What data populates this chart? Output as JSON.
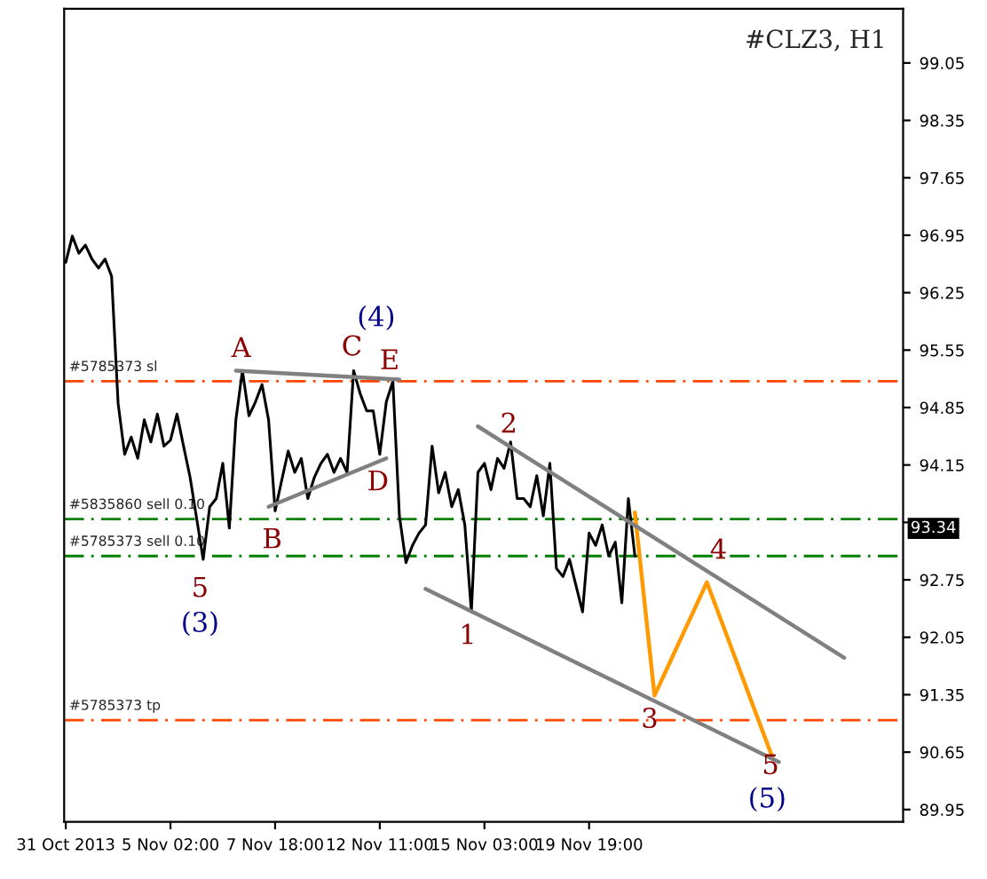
{
  "chart_data": {
    "type": "line",
    "title": "#CLZ3, H1",
    "categories": [
      "31 Oct 2013",
      null,
      null,
      null,
      null,
      null,
      null,
      null,
      null,
      null,
      null,
      null,
      null,
      null,
      null,
      null,
      "5 Nov 02:00",
      null,
      null,
      null,
      null,
      null,
      null,
      null,
      null,
      null,
      null,
      null,
      null,
      null,
      null,
      null,
      "7 Nov 18:00",
      null,
      null,
      null,
      null,
      null,
      null,
      null,
      null,
      null,
      null,
      null,
      null,
      null,
      null,
      null,
      "12 Nov 11:00",
      null,
      null,
      null,
      null,
      null,
      null,
      null,
      null,
      null,
      null,
      null,
      null,
      null,
      null,
      null,
      "15 Nov 03:00",
      null,
      null,
      null,
      null,
      null,
      null,
      null,
      null,
      null,
      null,
      null,
      null,
      null,
      null,
      null,
      "19 Nov 19:00",
      null,
      null,
      null,
      null,
      null,
      null,
      null,
      null,
      null,
      null,
      null,
      null,
      null,
      null,
      null,
      null,
      null,
      null,
      null,
      null,
      null,
      null,
      null,
      null,
      null,
      null,
      null,
      null,
      null,
      null,
      null,
      null,
      null,
      null,
      null,
      null,
      null,
      null,
      null,
      null,
      null,
      null,
      null,
      null,
      null,
      null,
      null
    ],
    "ylim": [
      89.8,
      99.71
    ],
    "yticks": [
      89.95,
      90.65,
      91.35,
      92.05,
      92.75,
      {
        "value": 93.45,
        "label": null
      },
      94.15,
      94.85,
      95.55,
      96.25,
      96.95,
      97.65,
      98.35,
      99.05
    ],
    "series": [
      {
        "color": "#000000",
        "values": [
          96.62,
          96.94,
          96.73,
          96.83,
          96.66,
          96.55,
          96.66,
          96.45,
          94.9,
          94.28,
          94.49,
          94.23,
          94.7,
          94.43,
          94.77,
          94.38,
          94.45,
          94.77,
          94.38,
          94.0,
          93.5,
          93.0,
          93.64,
          93.74,
          94.17,
          93.38,
          94.7,
          95.3,
          94.75,
          94.92,
          95.13,
          94.7,
          93.59,
          93.96,
          94.32,
          94.06,
          94.23,
          93.74,
          94.0,
          94.17,
          94.28,
          94.06,
          94.23,
          94.06,
          95.3,
          95.02,
          94.81,
          94.81,
          94.28,
          94.92,
          95.17,
          93.53,
          92.96,
          93.17,
          93.32,
          93.42,
          94.38,
          93.81,
          94.06,
          93.64,
          93.85,
          93.42,
          92.36,
          94.06,
          94.17,
          93.85,
          94.23,
          94.11,
          94.43,
          93.74,
          93.74,
          93.64,
          94.02,
          93.53,
          94.17,
          92.89,
          92.79,
          93.0,
          92.68,
          92.36,
          93.32,
          93.17,
          93.42,
          93.04,
          93.21,
          92.47,
          93.74,
          93.04,
          null,
          null,
          null,
          null,
          null,
          null,
          null,
          null,
          null,
          null,
          null,
          null,
          null,
          null,
          null,
          null,
          null,
          null,
          null,
          null,
          null,
          null,
          null,
          null,
          null,
          null,
          null,
          null,
          null,
          null,
          null,
          null,
          null,
          null,
          null,
          null,
          null,
          null,
          null,
          null
        ]
      },
      {
        "color": "#ff9900",
        "values": [
          null,
          null,
          null,
          null,
          null,
          null,
          null,
          null,
          null,
          null,
          null,
          null,
          null,
          null,
          null,
          null,
          null,
          null,
          null,
          null,
          null,
          null,
          null,
          null,
          null,
          null,
          null,
          null,
          null,
          null,
          null,
          null,
          null,
          null,
          null,
          null,
          null,
          null,
          null,
          null,
          null,
          null,
          null,
          null,
          null,
          null,
          null,
          null,
          null,
          null,
          null,
          null,
          null,
          null,
          null,
          null,
          null,
          null,
          null,
          null,
          null,
          null,
          null,
          null,
          null,
          null,
          null,
          null,
          null,
          null,
          null,
          null,
          null,
          null,
          null,
          null,
          null,
          null,
          null,
          null,
          null,
          null,
          null,
          null,
          null,
          null,
          null,
          93.57,
          null,
          null,
          91.34,
          null,
          null,
          null,
          null,
          null,
          null,
          null,
          92.72,
          null,
          null,
          null,
          null,
          null,
          null,
          null,
          null,
          null,
          90.59,
          null,
          null,
          null,
          null,
          null,
          null,
          null,
          null,
          null,
          null,
          null,
          null,
          null,
          null,
          null,
          null,
          null,
          null,
          null
        ]
      },
      {
        "color": "#808080",
        "values": [
          null,
          null,
          null,
          null,
          null,
          null,
          null,
          null,
          null,
          null,
          null,
          null,
          null,
          null,
          null,
          null,
          null,
          null,
          null,
          null,
          null,
          null,
          null,
          null,
          null,
          null,
          95.3,
          null,
          null,
          null,
          null,
          null,
          null,
          null,
          null,
          null,
          null,
          null,
          null,
          null,
          null,
          null,
          null,
          null,
          null,
          null,
          null,
          null,
          null,
          null,
          null,
          95.19,
          null,
          null,
          null,
          null,
          null,
          null,
          null,
          null,
          null,
          null,
          null,
          null,
          null,
          null,
          null,
          null,
          null,
          null,
          null,
          null,
          null,
          null,
          null,
          null,
          null,
          null,
          null,
          null,
          null,
          null,
          null,
          null,
          null,
          null,
          null,
          null,
          null,
          null,
          null,
          null,
          null,
          null,
          null,
          null,
          null,
          null,
          null,
          null,
          null,
          null,
          null,
          null,
          null,
          null,
          null,
          null,
          null,
          null,
          null,
          null,
          null,
          null,
          null,
          null,
          null,
          null,
          null,
          null,
          null,
          null,
          null,
          null,
          null,
          null,
          null,
          null
        ]
      },
      {
        "color": "#808080",
        "values": [
          null,
          null,
          null,
          null,
          null,
          null,
          null,
          null,
          null,
          null,
          null,
          null,
          null,
          null,
          null,
          null,
          null,
          null,
          null,
          null,
          null,
          null,
          null,
          null,
          null,
          null,
          null,
          null,
          null,
          null,
          null,
          93.64,
          null,
          null,
          null,
          null,
          null,
          null,
          null,
          null,
          null,
          null,
          null,
          null,
          null,
          null,
          null,
          null,
          null,
          94.23,
          null,
          null,
          null,
          null,
          null,
          null,
          null,
          null,
          null,
          null,
          null,
          null,
          null,
          null,
          null,
          null,
          null,
          null,
          null,
          null,
          null,
          null,
          null,
          null,
          null,
          null,
          null,
          null,
          null,
          null,
          null,
          null,
          null,
          null,
          null,
          null,
          null,
          null,
          null,
          null,
          null,
          null,
          null,
          null,
          null,
          null,
          null,
          null,
          null,
          null,
          null,
          null,
          null,
          null,
          null,
          null,
          null,
          null,
          null,
          null,
          null,
          null,
          null,
          null,
          null,
          null,
          null,
          null,
          null,
          null,
          null,
          null,
          null,
          null,
          null,
          null,
          null,
          null
        ]
      },
      {
        "color": "#808080",
        "values": [
          null,
          null,
          null,
          null,
          null,
          null,
          null,
          null,
          null,
          null,
          null,
          null,
          null,
          null,
          null,
          null,
          null,
          null,
          null,
          null,
          null,
          null,
          null,
          null,
          null,
          null,
          null,
          null,
          null,
          null,
          null,
          null,
          null,
          null,
          null,
          null,
          null,
          null,
          null,
          null,
          null,
          null,
          null,
          null,
          null,
          null,
          null,
          null,
          null,
          null,
          null,
          null,
          null,
          null,
          null,
          null,
          null,
          null,
          null,
          null,
          null,
          null,
          null,
          94.62,
          null,
          null,
          null,
          null,
          null,
          null,
          null,
          null,
          null,
          null,
          null,
          null,
          null,
          null,
          null,
          null,
          null,
          null,
          null,
          null,
          null,
          null,
          null,
          null,
          null,
          null,
          null,
          null,
          null,
          null,
          null,
          null,
          null,
          null,
          null,
          null,
          null,
          null,
          null,
          null,
          null,
          null,
          null,
          null,
          null,
          null,
          null,
          null,
          null,
          null,
          null,
          null,
          null,
          null,
          null,
          91.8,
          null,
          null,
          null,
          null,
          null,
          null,
          null,
          null
        ]
      },
      {
        "color": "#808080",
        "values": [
          null,
          null,
          null,
          null,
          null,
          null,
          null,
          null,
          null,
          null,
          null,
          null,
          null,
          null,
          null,
          null,
          null,
          null,
          null,
          null,
          null,
          null,
          null,
          null,
          null,
          null,
          null,
          null,
          null,
          null,
          null,
          null,
          null,
          null,
          null,
          null,
          null,
          null,
          null,
          null,
          null,
          null,
          null,
          null,
          null,
          null,
          null,
          null,
          null,
          null,
          null,
          null,
          null,
          null,
          null,
          92.64,
          null,
          null,
          null,
          null,
          null,
          null,
          null,
          null,
          null,
          null,
          null,
          null,
          null,
          null,
          null,
          null,
          null,
          null,
          null,
          null,
          null,
          null,
          null,
          null,
          null,
          null,
          null,
          null,
          null,
          null,
          null,
          null,
          null,
          null,
          null,
          null,
          null,
          null,
          null,
          null,
          null,
          null,
          null,
          null,
          null,
          null,
          null,
          null,
          null,
          null,
          null,
          null,
          null,
          90.53,
          null,
          null,
          null,
          null,
          null,
          null,
          null,
          null,
          null,
          null,
          null,
          null,
          null,
          null,
          null,
          null,
          null,
          null
        ]
      }
    ],
    "ref_lines": [
      {
        "axis": "y",
        "value": 95.17,
        "label": "#5785373 sl",
        "color": "#ff4500",
        "line_style": "dashed"
      },
      {
        "axis": "y",
        "value": 93.49,
        "label": "#5835860 sell 0.10",
        "color": "#008000",
        "line_style": "dashed"
      },
      {
        "axis": "y",
        "value": 93.04,
        "label": "#5785373 sell 0.10",
        "color": "#008000",
        "line_style": "dashed"
      },
      {
        "axis": "y",
        "value": 91.04,
        "label": "#5785373 tp",
        "color": "#ff4500",
        "line_style": "dashed"
      }
    ],
    "annotations": [
      "A",
      "B",
      "C",
      "D",
      "E",
      "(4)",
      "5",
      "(3)",
      "1",
      "2",
      "3",
      "4",
      "5",
      "(5)",
      "93.34"
    ],
    "grid": false,
    "legend": false
  }
}
